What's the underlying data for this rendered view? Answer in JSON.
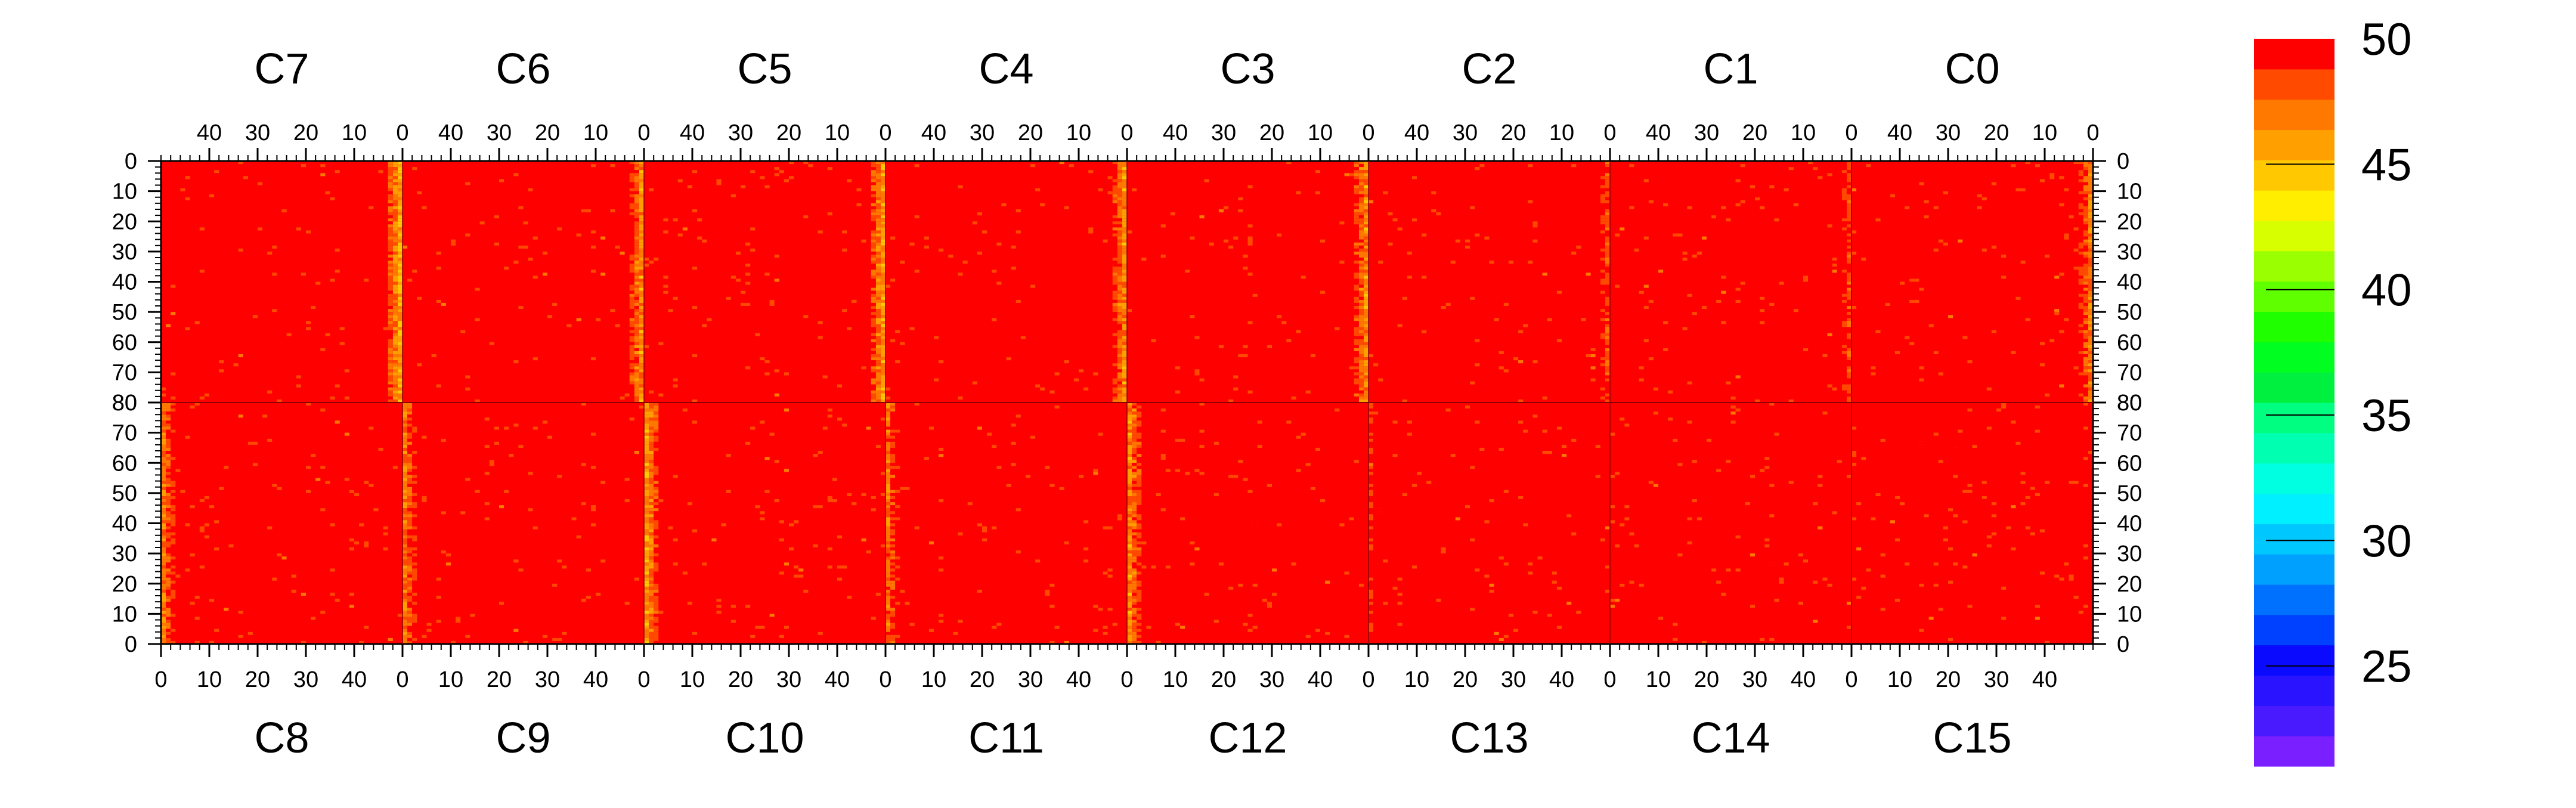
{
  "chart_data": {
    "type": "heatmap",
    "top_panels": [
      {
        "label": "C7",
        "x_ticks": [
          40,
          30,
          20,
          10,
          0
        ]
      },
      {
        "label": "C6",
        "x_ticks": [
          40,
          30,
          20,
          10,
          0
        ]
      },
      {
        "label": "C5",
        "x_ticks": [
          40,
          30,
          20,
          10,
          0
        ]
      },
      {
        "label": "C4",
        "x_ticks": [
          40,
          30,
          20,
          10,
          0
        ]
      },
      {
        "label": "C3",
        "x_ticks": [
          40,
          30,
          20,
          10,
          0
        ]
      },
      {
        "label": "C2",
        "x_ticks": [
          40,
          30,
          20,
          10,
          0
        ]
      },
      {
        "label": "C1",
        "x_ticks": [
          40,
          30,
          20,
          10,
          0
        ]
      },
      {
        "label": "C0",
        "x_ticks": [
          40,
          30,
          20,
          10,
          0
        ]
      }
    ],
    "bottom_panels": [
      {
        "label": "C8",
        "x_ticks": [
          0,
          10,
          20,
          30,
          40
        ]
      },
      {
        "label": "C9",
        "x_ticks": [
          0,
          10,
          20,
          30,
          40
        ]
      },
      {
        "label": "C10",
        "x_ticks": [
          0,
          10,
          20,
          30,
          40
        ]
      },
      {
        "label": "C11",
        "x_ticks": [
          0,
          10,
          20,
          30,
          40
        ]
      },
      {
        "label": "C12",
        "x_ticks": [
          0,
          10,
          20,
          30,
          40
        ]
      },
      {
        "label": "C13",
        "x_ticks": [
          0,
          10,
          20,
          30,
          40
        ]
      },
      {
        "label": "C14",
        "x_ticks": [
          0,
          10,
          20,
          30,
          40
        ]
      },
      {
        "label": "C15",
        "x_ticks": [
          0,
          10,
          20,
          30,
          40
        ]
      }
    ],
    "panel_x_range": [
      0,
      50
    ],
    "y_ticks_top_half": [
      0,
      10,
      20,
      30,
      40,
      50,
      60,
      70,
      80
    ],
    "y_ticks_bottom_half": [
      80,
      70,
      60,
      50,
      40,
      30,
      20,
      10,
      0
    ],
    "y_range_each_half": [
      0,
      80
    ],
    "typical_value": 50,
    "hot_columns": [
      {
        "panel": "C7",
        "x": 1,
        "level": 45.5
      },
      {
        "panel": "C6",
        "x": 1,
        "level": 46.5
      },
      {
        "panel": "C5",
        "x": 1,
        "level": 46
      },
      {
        "panel": "C4",
        "x": 1,
        "level": 46.5
      },
      {
        "panel": "C3",
        "x": 1,
        "level": 46.5
      },
      {
        "panel": "C2",
        "x": 1,
        "level": 48.5
      },
      {
        "panel": "C1",
        "x": 1,
        "level": 48.5
      },
      {
        "panel": "C0",
        "x": 1,
        "level": 47
      },
      {
        "panel": "C8",
        "x": 1,
        "level": 47
      },
      {
        "panel": "C9",
        "x": 1,
        "level": 47
      },
      {
        "panel": "C10",
        "x": 1,
        "level": 46
      },
      {
        "panel": "C11",
        "x": 1,
        "level": 47.5
      },
      {
        "panel": "C12",
        "x": 1,
        "level": 46.5
      },
      {
        "panel": "C13",
        "x": 1,
        "level": 49
      }
    ],
    "colorbar": {
      "min": 21,
      "max": 50,
      "ticks": [
        25,
        30,
        35,
        40,
        45,
        50
      ],
      "colors": [
        "#7a1fff",
        "#4a1aff",
        "#2a14ff",
        "#0a0aff",
        "#0040ff",
        "#0070ff",
        "#00a0ff",
        "#00c8ff",
        "#00f0ff",
        "#00ffe0",
        "#00ffb0",
        "#00ff80",
        "#00f040",
        "#00ff20",
        "#20ff00",
        "#60ff00",
        "#9aff00",
        "#d8ff00",
        "#ffee00",
        "#ffc800",
        "#ffa000",
        "#ff7800",
        "#ff4a00",
        "#ff0000"
      ]
    }
  }
}
